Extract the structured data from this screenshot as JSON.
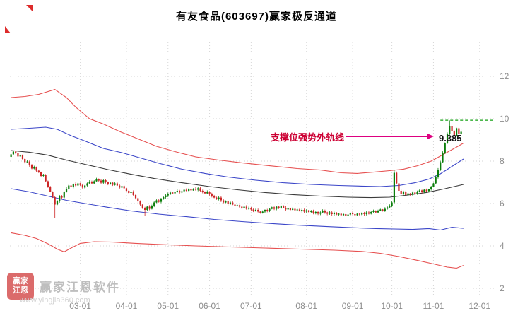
{
  "window": {
    "title": "有友食品(603697)赢家极反通道"
  },
  "watermark": {
    "logo_line1": "赢家",
    "logo_line2": "江恩",
    "name": "赢家江恩软件",
    "url": "www.yingjia360.com"
  },
  "chart_data": {
    "type": "candlestick",
    "title": "有友食品(603697)赢家极反通道",
    "ylim": [
      1.6,
      13.6
    ],
    "yticks": [
      2,
      4,
      6,
      8,
      10,
      12
    ],
    "xticks": [
      {
        "label": "03-01",
        "i": 30
      },
      {
        "label": "04-01",
        "i": 50
      },
      {
        "label": "05-01",
        "i": 68
      },
      {
        "label": "06-01",
        "i": 86
      },
      {
        "label": "07-01",
        "i": 104
      },
      {
        "label": "08-01",
        "i": 128
      },
      {
        "label": "09-01",
        "i": 148
      },
      {
        "label": "10-01",
        "i": 165
      },
      {
        "label": "11-01",
        "i": 183
      },
      {
        "label": "12-01",
        "i": 203
      }
    ],
    "x_index_max": 210,
    "grid": true,
    "first_open": 8.2,
    "closes": [
      8.32,
      8.45,
      8.38,
      8.22,
      8.28,
      8.1,
      7.95,
      7.98,
      7.8,
      7.65,
      7.72,
      7.55,
      7.48,
      7.3,
      7.35,
      7.05,
      6.8,
      6.55,
      6.3,
      5.95,
      6.1,
      6.35,
      6.28,
      6.55,
      6.7,
      6.85,
      6.78,
      6.92,
      6.85,
      6.95,
      6.88,
      6.75,
      6.85,
      6.95,
      7.02,
      6.95,
      7.05,
      7.15,
      7.08,
      6.98,
      7.1,
      7.02,
      6.92,
      6.98,
      6.88,
      6.95,
      6.85,
      6.75,
      6.82,
      6.72,
      6.6,
      6.5,
      6.55,
      6.4,
      6.25,
      6.1,
      5.95,
      5.8,
      5.7,
      5.85,
      5.75,
      5.9,
      6.05,
      6.15,
      6.08,
      6.2,
      6.3,
      6.38,
      6.45,
      6.52,
      6.48,
      6.55,
      6.6,
      6.52,
      6.58,
      6.65,
      6.6,
      6.68,
      6.62,
      6.7,
      6.65,
      6.72,
      6.6,
      6.55,
      6.48,
      6.55,
      6.45,
      6.35,
      6.28,
      6.2,
      6.28,
      6.15,
      6.05,
      6.1,
      5.98,
      6.05,
      5.95,
      5.88,
      5.92,
      5.85,
      5.78,
      5.85,
      5.75,
      5.8,
      5.72,
      5.65,
      5.7,
      5.62,
      5.55,
      5.62,
      5.7,
      5.65,
      5.75,
      5.82,
      5.75,
      5.85,
      5.78,
      5.88,
      5.8,
      5.72,
      5.78,
      5.7,
      5.75,
      5.68,
      5.72,
      5.65,
      5.7,
      5.62,
      5.68,
      5.6,
      5.65,
      5.55,
      5.6,
      5.52,
      5.58,
      5.65,
      5.58,
      5.52,
      5.58,
      5.5,
      5.55,
      5.48,
      5.52,
      5.45,
      5.5,
      5.42,
      5.48,
      5.55,
      5.5,
      5.45,
      5.52,
      5.48,
      5.55,
      5.5,
      5.58,
      5.52,
      5.6,
      5.65,
      5.58,
      5.66,
      5.72,
      5.65,
      5.75,
      5.82,
      5.9,
      6.05,
      7.45,
      6.95,
      6.6,
      6.45,
      6.55,
      6.4,
      6.48,
      6.42,
      6.52,
      6.45,
      6.55,
      6.62,
      6.55,
      6.65,
      6.58,
      6.68,
      6.78,
      6.95,
      7.25,
      7.6,
      7.95,
      8.4,
      8.85,
      9.3,
      9.65,
      9.4,
      9.2,
      9.55,
      9.3,
      9.385
    ],
    "wick_overrides": {
      "19": {
        "l": 5.3
      },
      "58": {
        "l": 5.42
      },
      "166": {
        "h": 7.58,
        "l": 5.98
      },
      "190": {
        "h": 9.92
      },
      "195": {
        "h": 9.52
      }
    },
    "channel_lines": [
      {
        "name": "upper-outer-red",
        "color": "#e65050",
        "points": [
          [
            0,
            11.0
          ],
          [
            6,
            11.05
          ],
          [
            12,
            11.15
          ],
          [
            19,
            11.38
          ],
          [
            24,
            11.0
          ],
          [
            28,
            10.55
          ],
          [
            34,
            10.0
          ],
          [
            40,
            9.75
          ],
          [
            47,
            9.4
          ],
          [
            55,
            9.05
          ],
          [
            63,
            8.7
          ],
          [
            71,
            8.45
          ],
          [
            80,
            8.2
          ],
          [
            90,
            8.05
          ],
          [
            100,
            7.92
          ],
          [
            112,
            7.78
          ],
          [
            124,
            7.65
          ],
          [
            134,
            7.58
          ],
          [
            143,
            7.45
          ],
          [
            150,
            7.42
          ],
          [
            157,
            7.48
          ],
          [
            164,
            7.55
          ],
          [
            170,
            7.62
          ],
          [
            176,
            7.78
          ],
          [
            182,
            8.0
          ],
          [
            187,
            8.3
          ],
          [
            192,
            8.6
          ],
          [
            196,
            8.85
          ]
        ]
      },
      {
        "name": "upper-blue",
        "color": "#3b46c8",
        "points": [
          [
            0,
            9.5
          ],
          [
            8,
            9.55
          ],
          [
            15,
            9.6
          ],
          [
            20,
            9.5
          ],
          [
            26,
            9.2
          ],
          [
            32,
            8.95
          ],
          [
            40,
            8.6
          ],
          [
            48,
            8.4
          ],
          [
            56,
            8.15
          ],
          [
            64,
            7.9
          ],
          [
            74,
            7.62
          ],
          [
            84,
            7.42
          ],
          [
            94,
            7.25
          ],
          [
            106,
            7.1
          ],
          [
            118,
            6.98
          ],
          [
            130,
            6.9
          ],
          [
            142,
            6.85
          ],
          [
            152,
            6.82
          ],
          [
            160,
            6.8
          ],
          [
            168,
            6.85
          ],
          [
            175,
            6.98
          ],
          [
            181,
            7.15
          ],
          [
            186,
            7.4
          ],
          [
            191,
            7.75
          ],
          [
            196,
            8.1
          ]
        ]
      },
      {
        "name": "middle-black",
        "color": "#3a3a3a",
        "points": [
          [
            0,
            8.5
          ],
          [
            8,
            8.42
          ],
          [
            16,
            8.28
          ],
          [
            24,
            8.05
          ],
          [
            32,
            7.85
          ],
          [
            42,
            7.6
          ],
          [
            52,
            7.38
          ],
          [
            62,
            7.18
          ],
          [
            74,
            6.98
          ],
          [
            86,
            6.8
          ],
          [
            98,
            6.65
          ],
          [
            110,
            6.52
          ],
          [
            122,
            6.42
          ],
          [
            134,
            6.35
          ],
          [
            146,
            6.3
          ],
          [
            156,
            6.28
          ],
          [
            164,
            6.3
          ],
          [
            172,
            6.4
          ],
          [
            180,
            6.52
          ],
          [
            188,
            6.7
          ],
          [
            196,
            6.9
          ]
        ]
      },
      {
        "name": "lower-blue",
        "color": "#3b46c8",
        "points": [
          [
            0,
            6.7
          ],
          [
            8,
            6.55
          ],
          [
            16,
            6.35
          ],
          [
            24,
            6.15
          ],
          [
            32,
            6.0
          ],
          [
            42,
            5.82
          ],
          [
            52,
            5.65
          ],
          [
            64,
            5.5
          ],
          [
            76,
            5.38
          ],
          [
            88,
            5.25
          ],
          [
            100,
            5.15
          ],
          [
            112,
            5.06
          ],
          [
            124,
            4.98
          ],
          [
            136,
            4.92
          ],
          [
            148,
            4.86
          ],
          [
            158,
            4.82
          ],
          [
            166,
            4.8
          ],
          [
            174,
            4.78
          ],
          [
            181,
            4.82
          ],
          [
            186,
            4.75
          ],
          [
            191,
            4.88
          ],
          [
            196,
            4.83
          ]
        ]
      },
      {
        "name": "lower-outer-red",
        "color": "#e65050",
        "points": [
          [
            0,
            4.62
          ],
          [
            6,
            4.5
          ],
          [
            11,
            4.35
          ],
          [
            16,
            4.1
          ],
          [
            20,
            3.85
          ],
          [
            23,
            3.72
          ],
          [
            26,
            3.9
          ],
          [
            30,
            4.12
          ],
          [
            36,
            4.2
          ],
          [
            44,
            4.18
          ],
          [
            54,
            4.12
          ],
          [
            66,
            4.06
          ],
          [
            80,
            4.0
          ],
          [
            95,
            3.95
          ],
          [
            110,
            3.9
          ],
          [
            125,
            3.85
          ],
          [
            140,
            3.8
          ],
          [
            152,
            3.74
          ],
          [
            160,
            3.65
          ],
          [
            168,
            3.5
          ],
          [
            176,
            3.32
          ],
          [
            183,
            3.15
          ],
          [
            189,
            3.0
          ],
          [
            193,
            2.95
          ],
          [
            196,
            3.08
          ]
        ]
      }
    ],
    "reference_line": {
      "value": 9.93,
      "from_i": 186,
      "color": "#13a113",
      "style": "dashed"
    },
    "annotation": {
      "label": "支撑位强势外轨线",
      "text_color": "#cc0033",
      "arrow_color": "#dd0080"
    },
    "last_price": "9.385",
    "colors": {
      "up": "#0a7d0a",
      "down": "#cc2525",
      "grid": "#d6d6d6",
      "axis_text": "#8c8c8c"
    }
  }
}
